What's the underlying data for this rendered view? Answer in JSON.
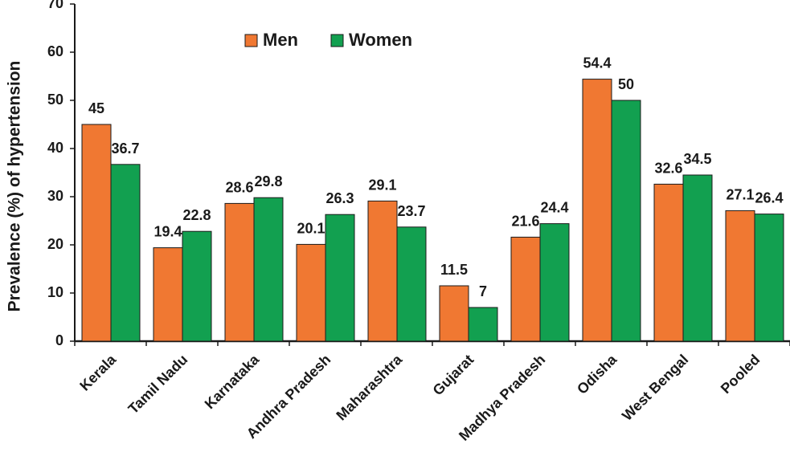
{
  "chart_data": {
    "type": "bar",
    "title": "",
    "xlabel": "",
    "ylabel": "Prevalence (%) of hypertension",
    "ylim": [
      0,
      70
    ],
    "yticks": [
      0,
      10,
      20,
      30,
      40,
      50,
      60,
      70
    ],
    "grid": false,
    "legend_position": "top-center",
    "categories": [
      "Kerala",
      "Tamil Nadu",
      "Karnataka",
      "Andhra Pradesh",
      "Maharashtra",
      "Gujarat",
      "Madhya Pradesh",
      "Odisha",
      "West Bengal",
      "Pooled"
    ],
    "series": [
      {
        "name": "Men",
        "color": "#F07832",
        "values": [
          45,
          19.4,
          28.6,
          20.1,
          29.1,
          11.5,
          21.6,
          54.4,
          32.6,
          27.1
        ],
        "labels": [
          "45",
          "19.4",
          "28.6",
          "20.1",
          "29.1",
          "11.5",
          "21.6",
          "54.4",
          "32.6",
          "27.1"
        ]
      },
      {
        "name": "Women",
        "color": "#12A050",
        "values": [
          36.7,
          22.8,
          29.8,
          26.3,
          23.7,
          7,
          24.4,
          50,
          34.5,
          26.4
        ],
        "labels": [
          "36.7",
          "22.8",
          "29.8",
          "26.3",
          "23.7",
          "7",
          "24.4",
          "50",
          "34.5",
          "26.4"
        ]
      }
    ]
  }
}
